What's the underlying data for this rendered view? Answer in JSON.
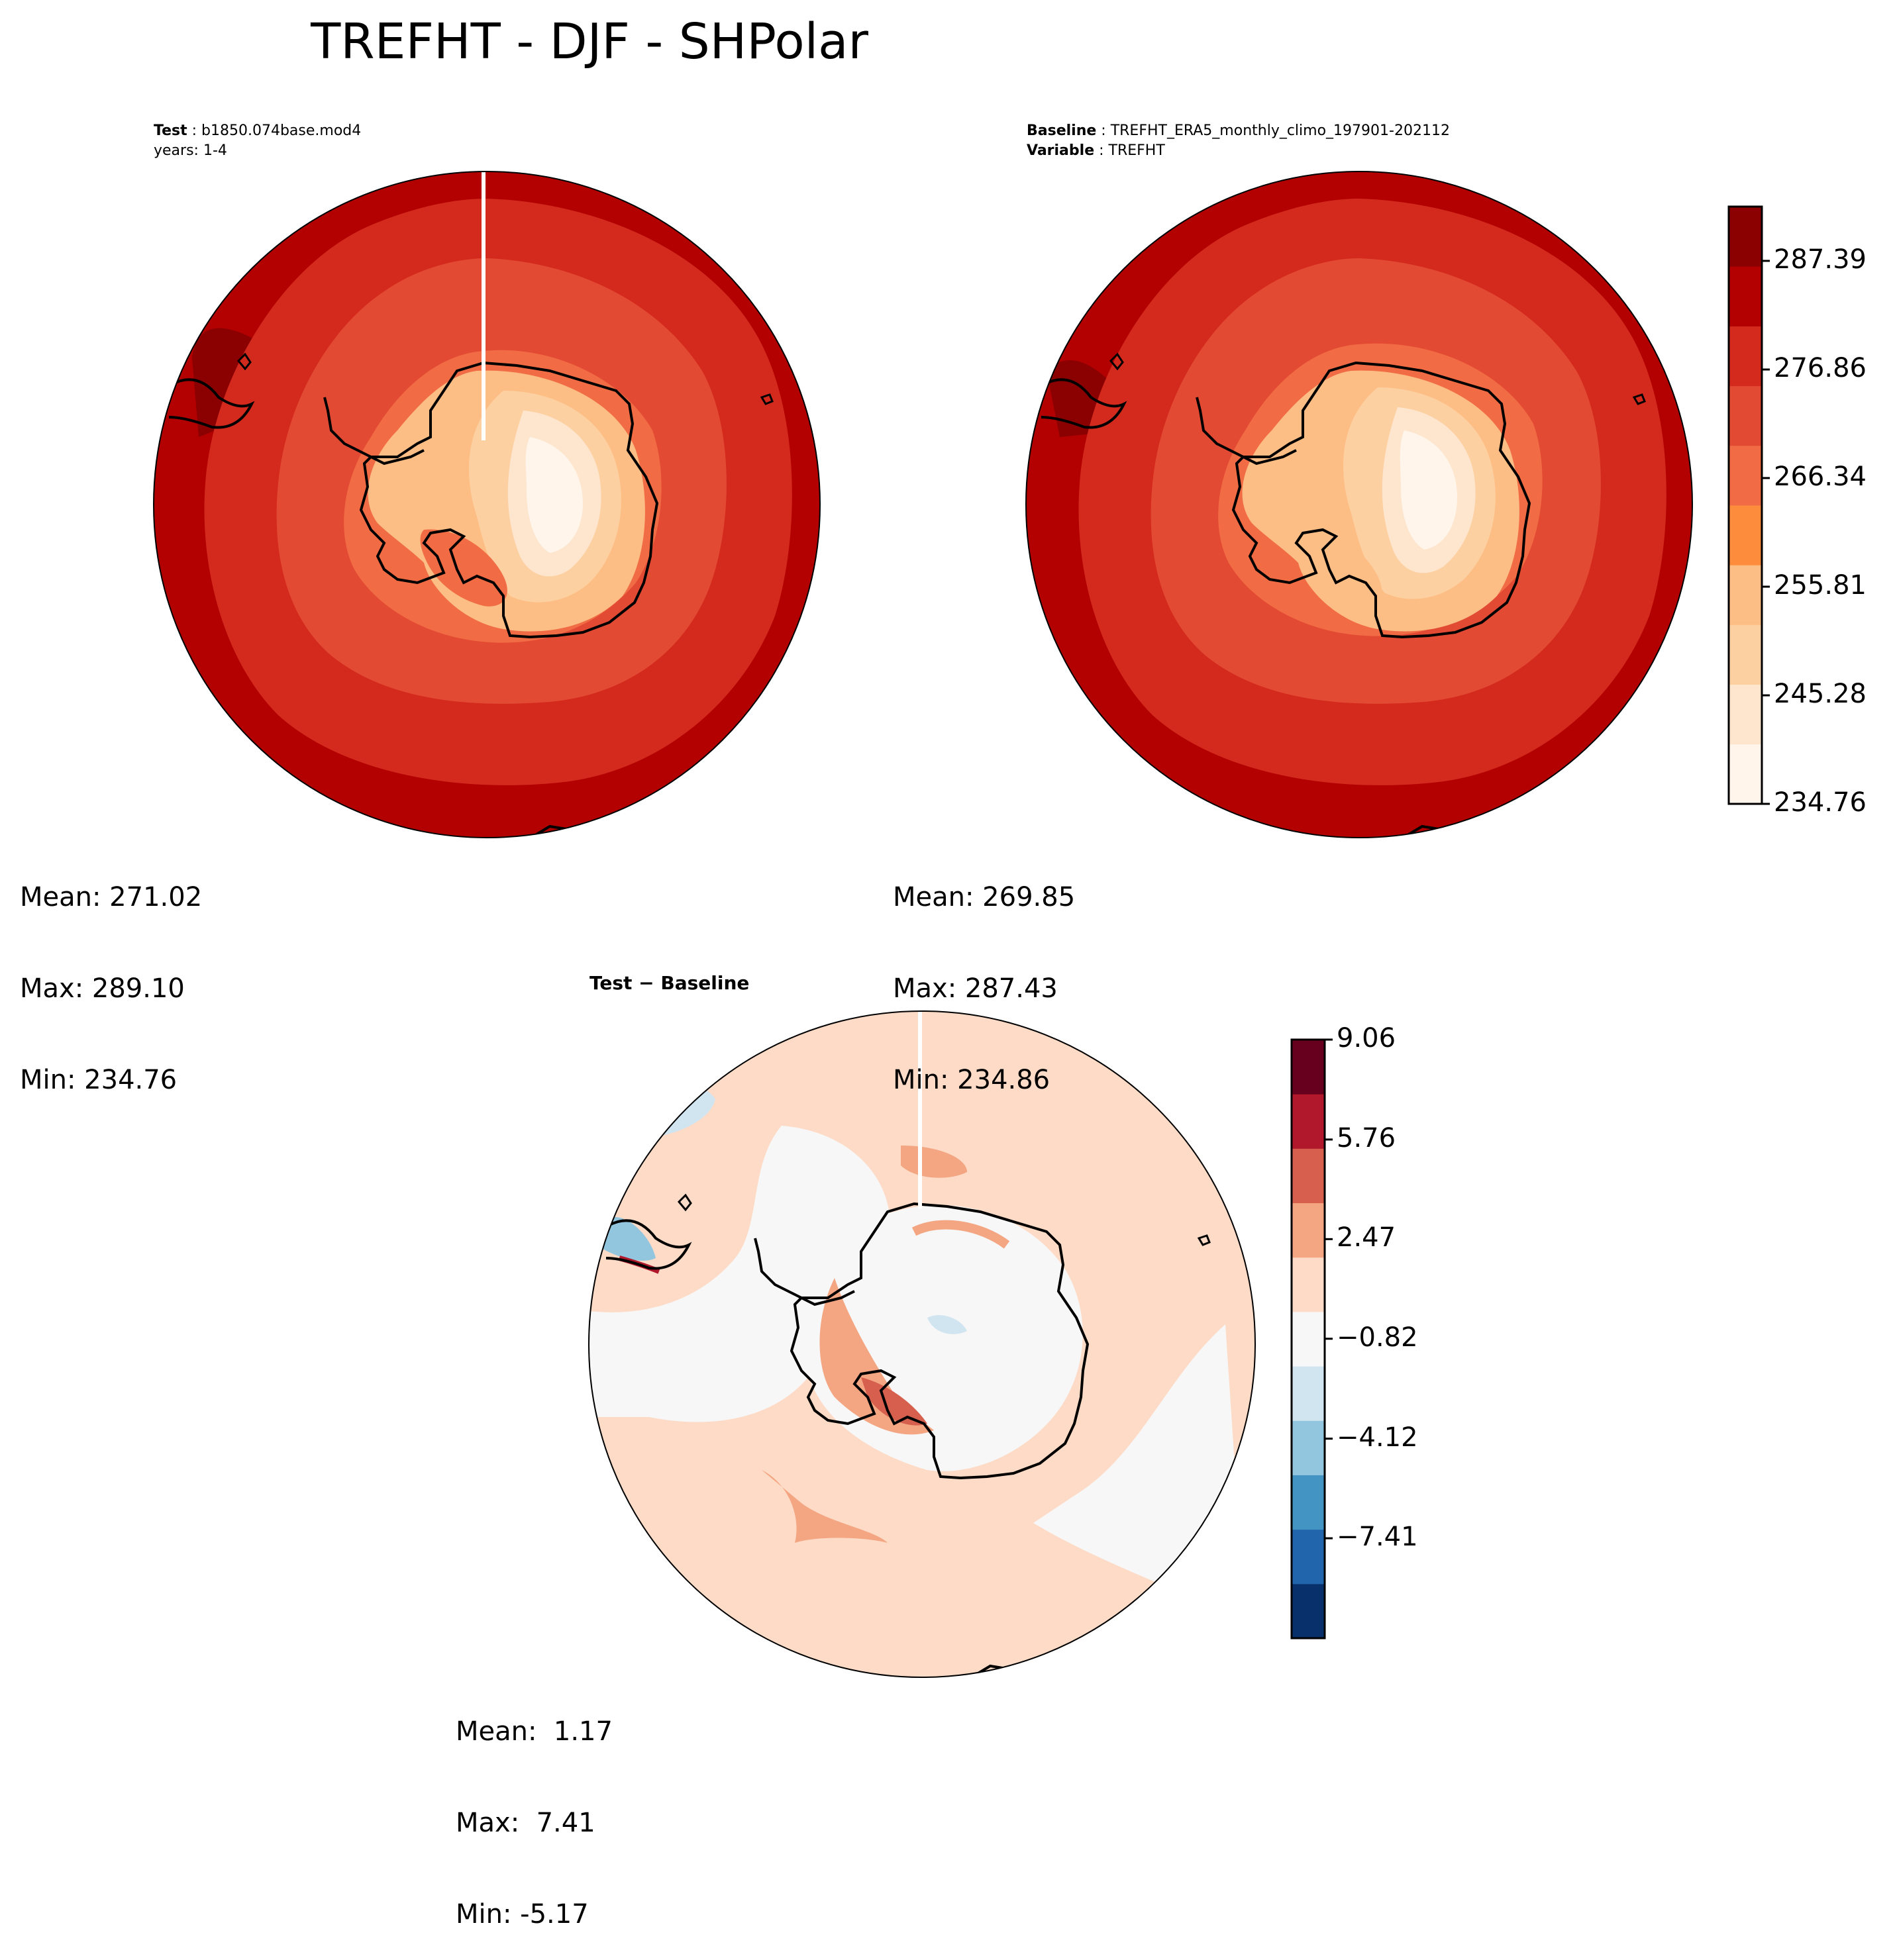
{
  "figure_title": "TREFHT - DJF - SHPolar",
  "panels": {
    "test": {
      "label": "Test",
      "case": "b1850.074base.mod4",
      "years": "years: 1-4",
      "stats": {
        "mean": "Mean: 271.02",
        "max": "Max: 289.10",
        "min": "Min: 234.76"
      }
    },
    "baseline": {
      "label": "Baseline",
      "case": "TREFHT_ERA5_monthly_climo_197901-202112",
      "variable_label": "Variable",
      "variable": "TREFHT",
      "stats": {
        "mean": "Mean: 269.85",
        "max": "Max: 287.43",
        "min": "Min: 234.86"
      }
    },
    "diff": {
      "title_a": "Test",
      "title_sep": " − ",
      "title_b": "Baseline",
      "stats": {
        "mean": "Mean:  1.17",
        "max": "Max:  7.41",
        "min": "Min: -5.17"
      }
    }
  },
  "colorbars": {
    "absolute": {
      "colormap": "Reds",
      "min": 234.76,
      "max": 292.65,
      "ticks": [
        "287.39",
        "276.86",
        "266.34",
        "255.81",
        "245.28",
        "234.76"
      ],
      "colors": [
        "#fff5eb",
        "#fee6ce",
        "#fdd0a2",
        "#fdbe85",
        "#fd8d3c",
        "#f16c44",
        "#e34a33",
        "#d42a1e",
        "#b30000",
        "#8b0000"
      ]
    },
    "difference": {
      "colormap": "RdBu_r",
      "min": -10.71,
      "max": 9.06,
      "ticks": [
        "9.06",
        "5.76",
        "2.47",
        "−0.82",
        "−4.12",
        "−7.41"
      ],
      "colors": [
        "#08306b",
        "#2166ac",
        "#4393c3",
        "#92c5de",
        "#d1e5f0",
        "#f7f7f7",
        "#fddbc7",
        "#f4a582",
        "#d6604d",
        "#b2182b",
        "#67001f"
      ]
    }
  }
}
